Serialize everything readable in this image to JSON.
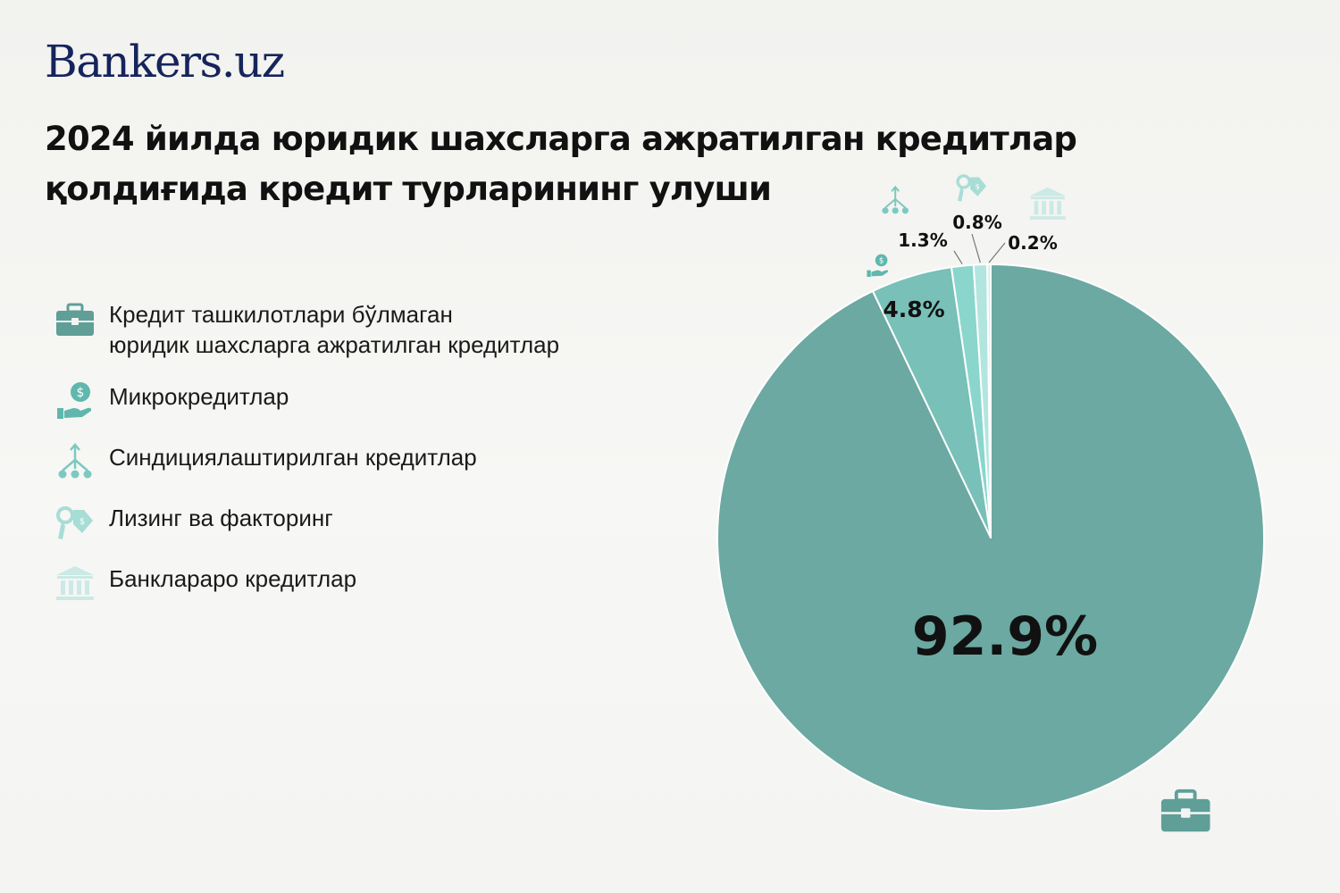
{
  "brand": "Bankers.uz",
  "title": "2024 йилда юридик шахсларга ажратилган кредитлар қолдиғида кредит турларининг улуши",
  "legend": [
    {
      "label": "Кредит ташкилотлари бўлмаган\nюридик шахсларга ажратилган кредитлар",
      "icon": "briefcase-icon"
    },
    {
      "label": "Микрокредитлар",
      "icon": "hand-coin-icon"
    },
    {
      "label": "Синдициялаштирилган кредитлар",
      "icon": "network-icon"
    },
    {
      "label": "Лизинг ва факторинг",
      "icon": "key-tag-icon"
    },
    {
      "label": "Банклараро кредитлар",
      "icon": "bank-icon"
    }
  ],
  "chart_data": {
    "type": "pie",
    "title": "2024 йилда юридик шахсларга ажратилган кредитлар қолдиғида кредит турларининг улуши",
    "categories": [
      "Кредит ташкилотлари бўлмаган юридик шахсларга ажратилган кредитлар",
      "Микрокредитлар",
      "Синдициялаштирилган кредитлар",
      "Лизинг ва факторинг",
      "Банклараро кредитлар"
    ],
    "values": [
      92.9,
      4.8,
      1.3,
      0.8,
      0.2
    ],
    "labels": [
      "92.9%",
      "4.8%",
      "1.3%",
      "0.8%",
      "0.2%"
    ],
    "colors": [
      "#6ba9a2",
      "#78c0b8",
      "#8ad6cd",
      "#b3e5df",
      "#d4efec"
    ],
    "start": "12 o'clock, clockwise",
    "legend_position": "left"
  }
}
